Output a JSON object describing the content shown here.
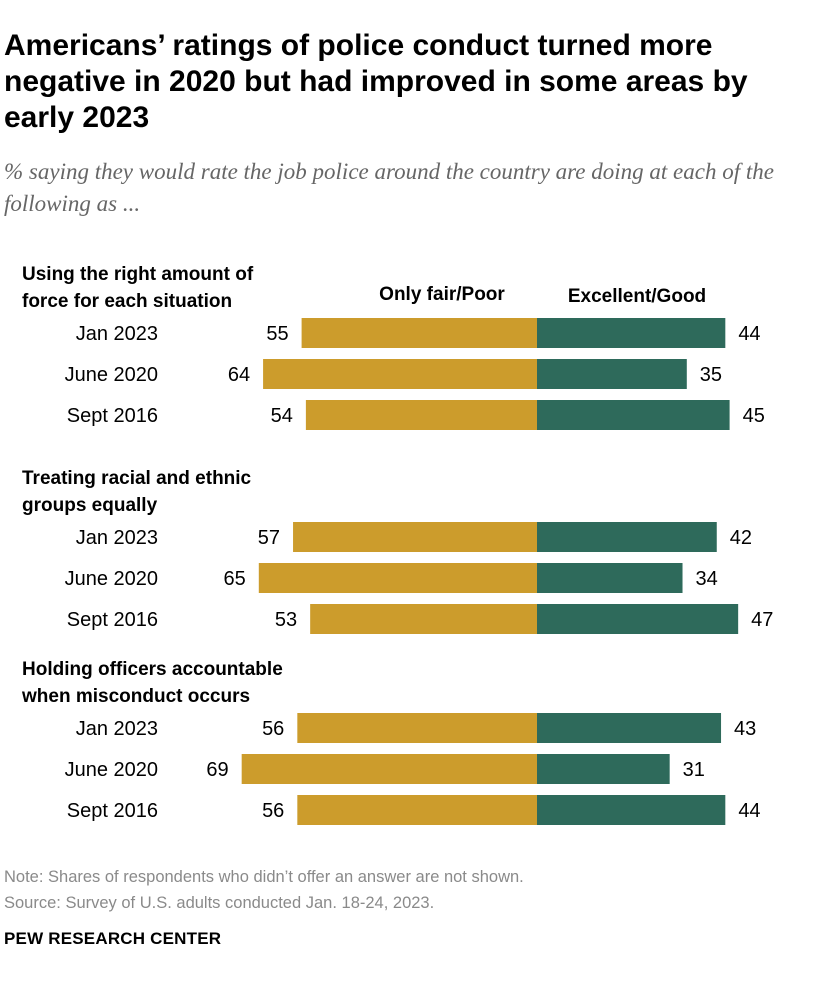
{
  "title": "Americans’ ratings of police conduct turned more negative in 2020 but had improved in some areas by early 2023",
  "subtitle": "% saying they would rate the job police around the country are doing at each of the following as ...",
  "chart_data": {
    "type": "bar",
    "orientation": "diverging-horizontal",
    "title": "Americans’ ratings of police conduct turned more negative in 2020 but had improved in some areas by early 2023",
    "legend": [
      "Only fair/Poor",
      "Excellent/Good"
    ],
    "colors": {
      "negative": "#cc9c2c",
      "positive": "#2e6a5b"
    },
    "groups": [
      {
        "label": "Using the right amount of force for each situation",
        "label_lines": [
          "Using the right amount of",
          "force for each situation"
        ],
        "rows": [
          {
            "period": "Jan 2023",
            "negative": 55,
            "positive": 44
          },
          {
            "period": "June 2020",
            "negative": 64,
            "positive": 35
          },
          {
            "period": "Sept 2016",
            "negative": 54,
            "positive": 45
          }
        ]
      },
      {
        "label": "Treating racial and ethnic groups equally",
        "label_lines": [
          "Treating racial and ethnic",
          "groups equally"
        ],
        "rows": [
          {
            "period": "Jan 2023",
            "negative": 57,
            "positive": 42
          },
          {
            "period": "June 2020",
            "negative": 65,
            "positive": 34
          },
          {
            "period": "Sept 2016",
            "negative": 53,
            "positive": 47
          }
        ]
      },
      {
        "label": "Holding officers accountable when misconduct occurs",
        "label_lines": [
          "Holding officers accountable",
          "when misconduct occurs"
        ],
        "rows": [
          {
            "period": "Jan 2023",
            "negative": 56,
            "positive": 43
          },
          {
            "period": "June 2020",
            "negative": 69,
            "positive": 31
          },
          {
            "period": "Sept 2016",
            "negative": 56,
            "positive": 44
          }
        ]
      }
    ]
  },
  "note": "Note: Shares of respondents who didn’t offer an answer are not shown.",
  "source": "Source: Survey of U.S. adults conducted Jan. 18-24, 2023.",
  "brand": "PEW RESEARCH CENTER"
}
